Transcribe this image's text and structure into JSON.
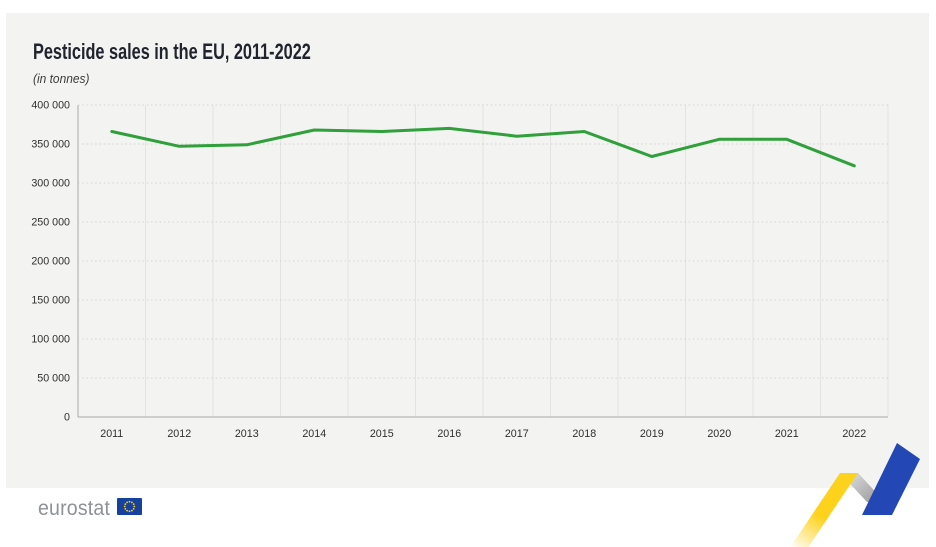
{
  "header": {
    "title": "Pesticide sales in the EU, 2011-2022",
    "subtitle": "(in tonnes)"
  },
  "chart_data": {
    "type": "line",
    "title": "Pesticide sales in the EU, 2011-2022",
    "unit": "tonnes",
    "x": [
      "2011",
      "2012",
      "2013",
      "2014",
      "2015",
      "2016",
      "2017",
      "2018",
      "2019",
      "2020",
      "2021",
      "2022"
    ],
    "series": [
      {
        "name": "Pesticide sales in the EU (tonnes)",
        "color": "#2fa03a",
        "values": [
          366000,
          347000,
          349000,
          368000,
          366000,
          370000,
          360000,
          366000,
          334000,
          356000,
          356000,
          322000
        ]
      }
    ],
    "ylim": [
      0,
      400000
    ],
    "ytick_step": 50000,
    "ytick_labels": [
      "0",
      "50 000",
      "100 000",
      "150 000",
      "200 000",
      "250 000",
      "300 000",
      "350 000",
      "400 000"
    ],
    "xlabel": "",
    "ylabel": "",
    "grid": {
      "horizontal": "dotted",
      "vertical": "solid"
    },
    "legend": "none"
  },
  "footer": {
    "logo_text": "eurostat",
    "flag": {
      "blue": "#16419f",
      "star_yellow": "#ffd617"
    }
  },
  "decoration": {
    "zigzag": {
      "yellow": "#fdd21d",
      "gray_light": "#dcdcdc",
      "gray_dark": "#9b9b9b",
      "blue": "#2347b5"
    }
  },
  "colors": {
    "page_bg": "#ffffff",
    "card_bg": "#f3f3f2",
    "axis": "#a9a9a9",
    "grid_vertical": "#e3e3e2",
    "grid_horizontal": "#d4d4d3",
    "tick_label": "#2f2f2f",
    "title_text": "#20242e",
    "logo_text": "#8f9296",
    "line_green": "#2fa03a"
  }
}
